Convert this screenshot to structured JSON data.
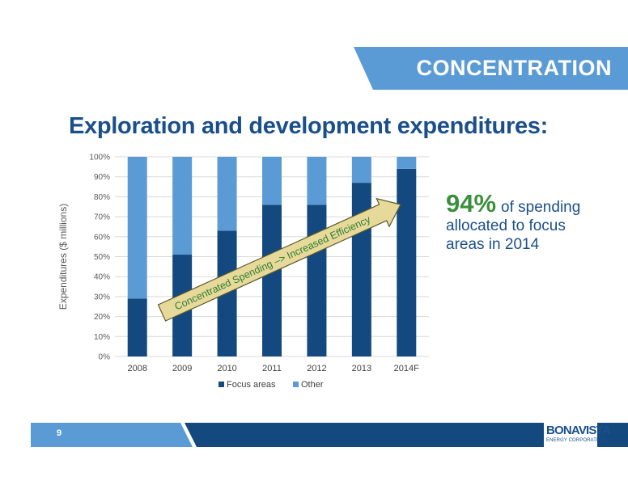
{
  "banner": {
    "text": "CONCENTRATION"
  },
  "title": "Exploration and development expenditures:",
  "callout": {
    "value": "94%",
    "text": "of spending allocated to focus areas in 2014"
  },
  "arrow": {
    "text": "Concentrated Spending –> Increased Efficiency"
  },
  "footer": {
    "page_number": "9"
  },
  "logo": {
    "main": "BONAVISTA",
    "sub": "ENERGY CORPORATION"
  },
  "colors": {
    "focus": "#14497f",
    "other": "#5b9bd5",
    "title": "#1a4f8b",
    "callout_value": "#3a8f3c",
    "arrow_fill": "#e6d99a"
  },
  "chart_data": {
    "type": "bar",
    "stacked": true,
    "categories": [
      "2008",
      "2009",
      "2010",
      "2011",
      "2012",
      "2013",
      "2014F"
    ],
    "series": [
      {
        "name": "Focus areas",
        "values": [
          29,
          51,
          63,
          76,
          76,
          87,
          94
        ]
      },
      {
        "name": "Other",
        "values": [
          71,
          49,
          37,
          24,
          24,
          13,
          6
        ]
      }
    ],
    "ylabel": "Expenditures ($ millions)",
    "ylim": [
      0,
      100
    ],
    "yticks": [
      "0%",
      "10%",
      "20%",
      "30%",
      "40%",
      "50%",
      "60%",
      "70%",
      "80%",
      "90%",
      "100%"
    ],
    "grid": true,
    "legend": "bottom"
  }
}
